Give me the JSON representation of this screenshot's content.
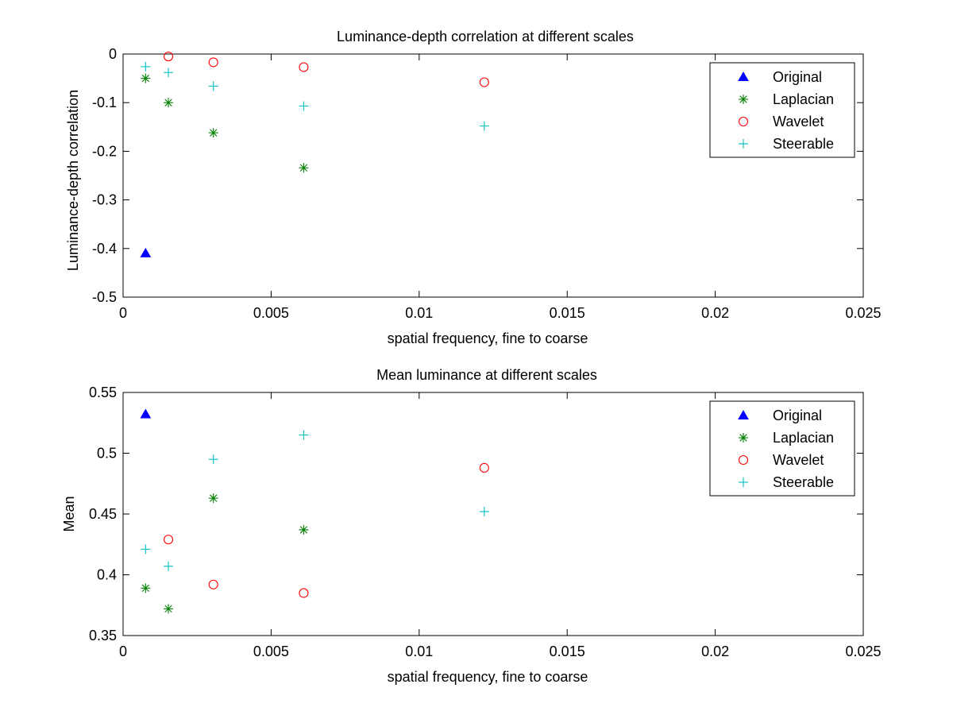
{
  "chart_data": [
    {
      "type": "scatter",
      "title": "Luminance-depth correlation at different scales",
      "xlabel": "spatial frequency, fine to coarse",
      "ylabel": "Luminance-depth correlation",
      "xlim": [
        0,
        0.025
      ],
      "ylim": [
        -0.5,
        0
      ],
      "xticks": [
        0,
        0.005,
        0.01,
        0.015,
        0.02,
        0.025
      ],
      "xtick_labels": [
        "0",
        "0.005",
        "0.01",
        "0.015",
        "0.02",
        "0.025"
      ],
      "yticks": [
        0,
        -0.1,
        -0.2,
        -0.3,
        -0.4,
        -0.5
      ],
      "ytick_labels": [
        "0",
        "-0.1",
        "-0.2",
        "-0.3",
        "-0.4",
        "-0.5"
      ],
      "grid": false,
      "legend_position": "top-right",
      "series": [
        {
          "name": "Original",
          "marker": "triangle",
          "color": "#0000ff",
          "x": [
            0.00076
          ],
          "y": [
            -0.41
          ]
        },
        {
          "name": "Laplacian",
          "marker": "asterisk",
          "color": "#007f00",
          "x": [
            0.00076,
            0.00153,
            0.00305,
            0.0061
          ],
          "y": [
            -0.05,
            -0.1,
            -0.162,
            -0.234
          ]
        },
        {
          "name": "Wavelet",
          "marker": "circle",
          "color": "#ff0000",
          "x": [
            0.00153,
            0.00305,
            0.0061,
            0.0122
          ],
          "y": [
            -0.005,
            -0.017,
            -0.027,
            -0.058
          ]
        },
        {
          "name": "Steerable",
          "marker": "plus",
          "color": "#00bfbf",
          "x": [
            0.00076,
            0.00153,
            0.00305,
            0.0061,
            0.0122
          ],
          "y": [
            -0.026,
            -0.038,
            -0.066,
            -0.107,
            -0.148
          ]
        }
      ]
    },
    {
      "type": "scatter",
      "title": "Mean luminance at different scales",
      "xlabel": "spatial frequency, fine to coarse",
      "ylabel": "Mean",
      "xlim": [
        0,
        0.025
      ],
      "ylim": [
        0.35,
        0.55
      ],
      "xticks": [
        0,
        0.005,
        0.01,
        0.015,
        0.02,
        0.025
      ],
      "xtick_labels": [
        "0",
        "0.005",
        "0.01",
        "0.015",
        "0.02",
        "0.025"
      ],
      "yticks": [
        0.55,
        0.5,
        0.45,
        0.4,
        0.35
      ],
      "ytick_labels": [
        "0.55",
        "0.5",
        "0.45",
        "0.4",
        "0.35"
      ],
      "grid": false,
      "legend_position": "top-right",
      "series": [
        {
          "name": "Original",
          "marker": "triangle",
          "color": "#0000ff",
          "x": [
            0.00076
          ],
          "y": [
            0.532
          ]
        },
        {
          "name": "Laplacian",
          "marker": "asterisk",
          "color": "#007f00",
          "x": [
            0.00076,
            0.00153,
            0.00305,
            0.0061
          ],
          "y": [
            0.389,
            0.372,
            0.463,
            0.437
          ]
        },
        {
          "name": "Wavelet",
          "marker": "circle",
          "color": "#ff0000",
          "x": [
            0.00153,
            0.00305,
            0.0061,
            0.0122
          ],
          "y": [
            0.429,
            0.392,
            0.385,
            0.488
          ]
        },
        {
          "name": "Steerable",
          "marker": "plus",
          "color": "#00bfbf",
          "x": [
            0.00076,
            0.00153,
            0.00305,
            0.0061,
            0.0122
          ],
          "y": [
            0.421,
            0.407,
            0.495,
            0.515,
            0.452
          ]
        }
      ]
    }
  ]
}
